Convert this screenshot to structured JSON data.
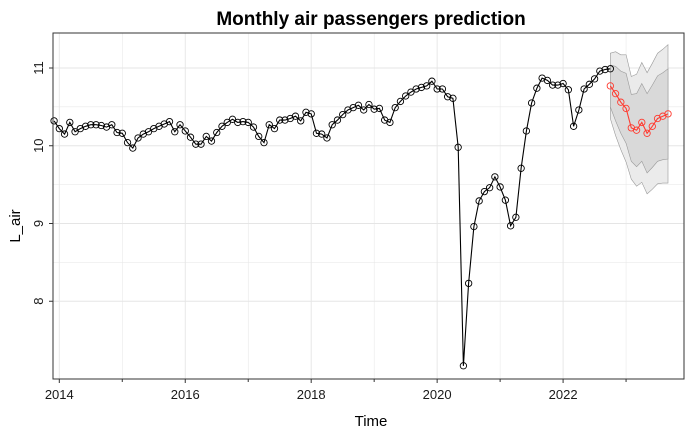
{
  "chart_data": {
    "type": "line",
    "title": "Monthly air passengers prediction",
    "xlabel": "Time",
    "ylabel": "L_air",
    "xlim": [
      2013.9,
      2023.92
    ],
    "ylim": [
      7.0,
      11.45
    ],
    "x_ticks": [
      2014,
      2016,
      2018,
      2020,
      2022
    ],
    "y_ticks": [
      8,
      9,
      10,
      11
    ],
    "grid": true,
    "legend": "none",
    "colors": {
      "observed": "#000000",
      "forecast": "#ff3b30",
      "band_outer": "#ebebeb",
      "band_inner": "#d9d9d9",
      "grid": "#e5e5e5"
    },
    "series": [
      {
        "role": "observed",
        "start": 2013.917,
        "step": 0.0833333,
        "values": [
          10.32,
          10.22,
          10.15,
          10.3,
          10.18,
          10.22,
          10.25,
          10.27,
          10.27,
          10.26,
          10.24,
          10.27,
          10.17,
          10.16,
          10.04,
          9.97,
          10.1,
          10.15,
          10.18,
          10.22,
          10.25,
          10.28,
          10.31,
          10.18,
          10.27,
          10.19,
          10.11,
          10.02,
          10.02,
          10.12,
          10.06,
          10.17,
          10.25,
          10.3,
          10.34,
          10.3,
          10.31,
          10.3,
          10.24,
          10.12,
          10.04,
          10.27,
          10.22,
          10.33,
          10.33,
          10.35,
          10.38,
          10.32,
          10.43,
          10.41,
          10.16,
          10.15,
          10.1,
          10.27,
          10.33,
          10.4,
          10.46,
          10.49,
          10.52,
          10.46,
          10.53,
          10.47,
          10.48,
          10.33,
          10.3,
          10.49,
          10.57,
          10.64,
          10.69,
          10.73,
          10.75,
          10.77,
          10.83,
          10.73,
          10.73,
          10.63,
          10.61,
          9.98,
          7.17,
          8.23,
          8.96,
          9.29,
          9.41,
          9.46,
          9.6,
          9.47,
          9.3,
          8.97,
          9.08,
          9.71,
          10.19,
          10.55,
          10.74,
          10.87,
          10.84,
          10.78,
          10.78,
          10.8,
          10.72,
          10.25,
          10.46,
          10.73,
          10.79,
          10.86,
          10.96,
          10.98,
          10.99
        ]
      },
      {
        "role": "forecast",
        "start": 2022.75,
        "step": 0.0833333,
        "values": [
          10.77,
          10.67,
          10.56,
          10.48,
          10.23,
          10.2,
          10.3,
          10.16,
          10.25,
          10.35,
          10.38,
          10.41
        ],
        "lo80": [
          10.5,
          10.32,
          10.16,
          10.03,
          9.8,
          9.73,
          9.8,
          9.65,
          9.72,
          9.8,
          9.82,
          9.83
        ],
        "hi80": [
          11.04,
          11.02,
          10.96,
          10.93,
          10.66,
          10.67,
          10.8,
          10.67,
          10.78,
          10.9,
          10.94,
          10.99
        ],
        "lo95": [
          10.35,
          10.13,
          9.95,
          9.79,
          9.57,
          9.48,
          9.53,
          9.38,
          9.44,
          9.51,
          9.52,
          9.52
        ],
        "hi95": [
          11.19,
          11.21,
          11.17,
          11.17,
          10.89,
          10.92,
          11.07,
          10.94,
          11.06,
          11.19,
          11.24,
          11.3
        ]
      }
    ]
  }
}
